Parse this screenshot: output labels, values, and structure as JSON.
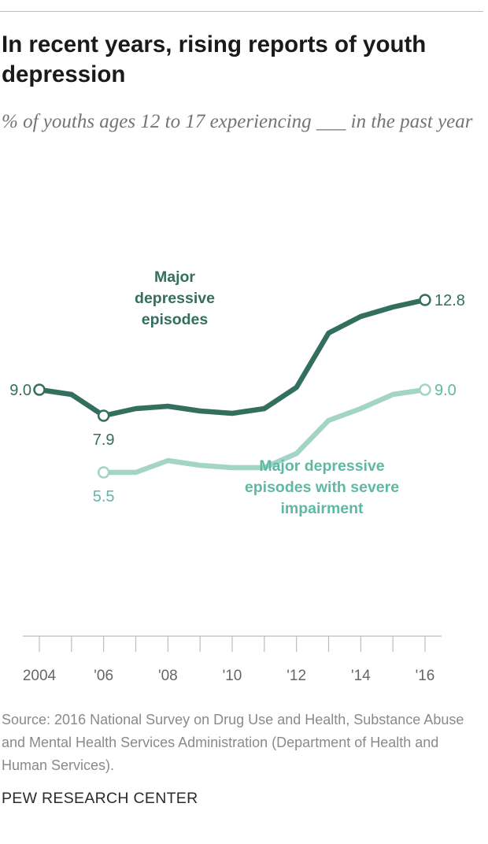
{
  "header": {
    "title": "In recent years, rising reports of youth depression",
    "subtitle": "% of youths ages 12 to 17 experiencing ___ in the past year"
  },
  "footer": {
    "source": "Source: 2016 National Survey on Drug Use and Health, Substance Abuse and Mental Health Services Administration (Department of Health and Human Services).",
    "brand": "PEW RESEARCH CENTER"
  },
  "chart_data": {
    "type": "line",
    "title": "In recent years, rising reports of youth depression",
    "subtitle": "% of youths ages 12 to 17 experiencing ___ in the past year",
    "xlabel": "",
    "ylabel": "",
    "x": [
      2004,
      2005,
      2006,
      2007,
      2008,
      2009,
      2010,
      2011,
      2012,
      2013,
      2014,
      2015,
      2016
    ],
    "xlim": [
      2004,
      2016
    ],
    "ylim": [
      0,
      14
    ],
    "grid": false,
    "legend": "direct labels on chart",
    "x_tick_values": [
      2004,
      2006,
      2008,
      2010,
      2012,
      2014,
      2016
    ],
    "x_tick_labels": [
      "2004",
      "'06",
      "'08",
      "'10",
      "'12",
      "'14",
      "'16"
    ],
    "series": [
      {
        "name": "Major depressive episodes",
        "label_lines": [
          "Major",
          "depressive",
          "episodes"
        ],
        "color": "#336f5e",
        "x": [
          2004,
          2005,
          2006,
          2007,
          2008,
          2009,
          2010,
          2011,
          2012,
          2013,
          2014,
          2015,
          2016
        ],
        "values": [
          9.0,
          8.8,
          7.9,
          8.2,
          8.3,
          8.1,
          8.0,
          8.2,
          9.1,
          11.4,
          12.1,
          12.5,
          12.8
        ],
        "point_labels": [
          {
            "x": 2004,
            "text": "9.0"
          },
          {
            "x": 2006,
            "text": "7.9"
          },
          {
            "x": 2016,
            "text": "12.8"
          }
        ]
      },
      {
        "name": "Major depressive episodes with severe impairment",
        "label_lines": [
          "Major depressive",
          "episodes with severe",
          "impairment"
        ],
        "color": "#a2d5c6",
        "label_color": "#5fb8a3",
        "x": [
          2006,
          2007,
          2008,
          2009,
          2010,
          2011,
          2012,
          2013,
          2014,
          2015,
          2016
        ],
        "values": [
          5.5,
          5.5,
          6.0,
          5.8,
          5.7,
          5.7,
          6.3,
          7.7,
          8.2,
          8.8,
          9.0
        ],
        "point_labels": [
          {
            "x": 2006,
            "text": "5.5"
          },
          {
            "x": 2016,
            "text": "9.0"
          }
        ]
      }
    ]
  }
}
